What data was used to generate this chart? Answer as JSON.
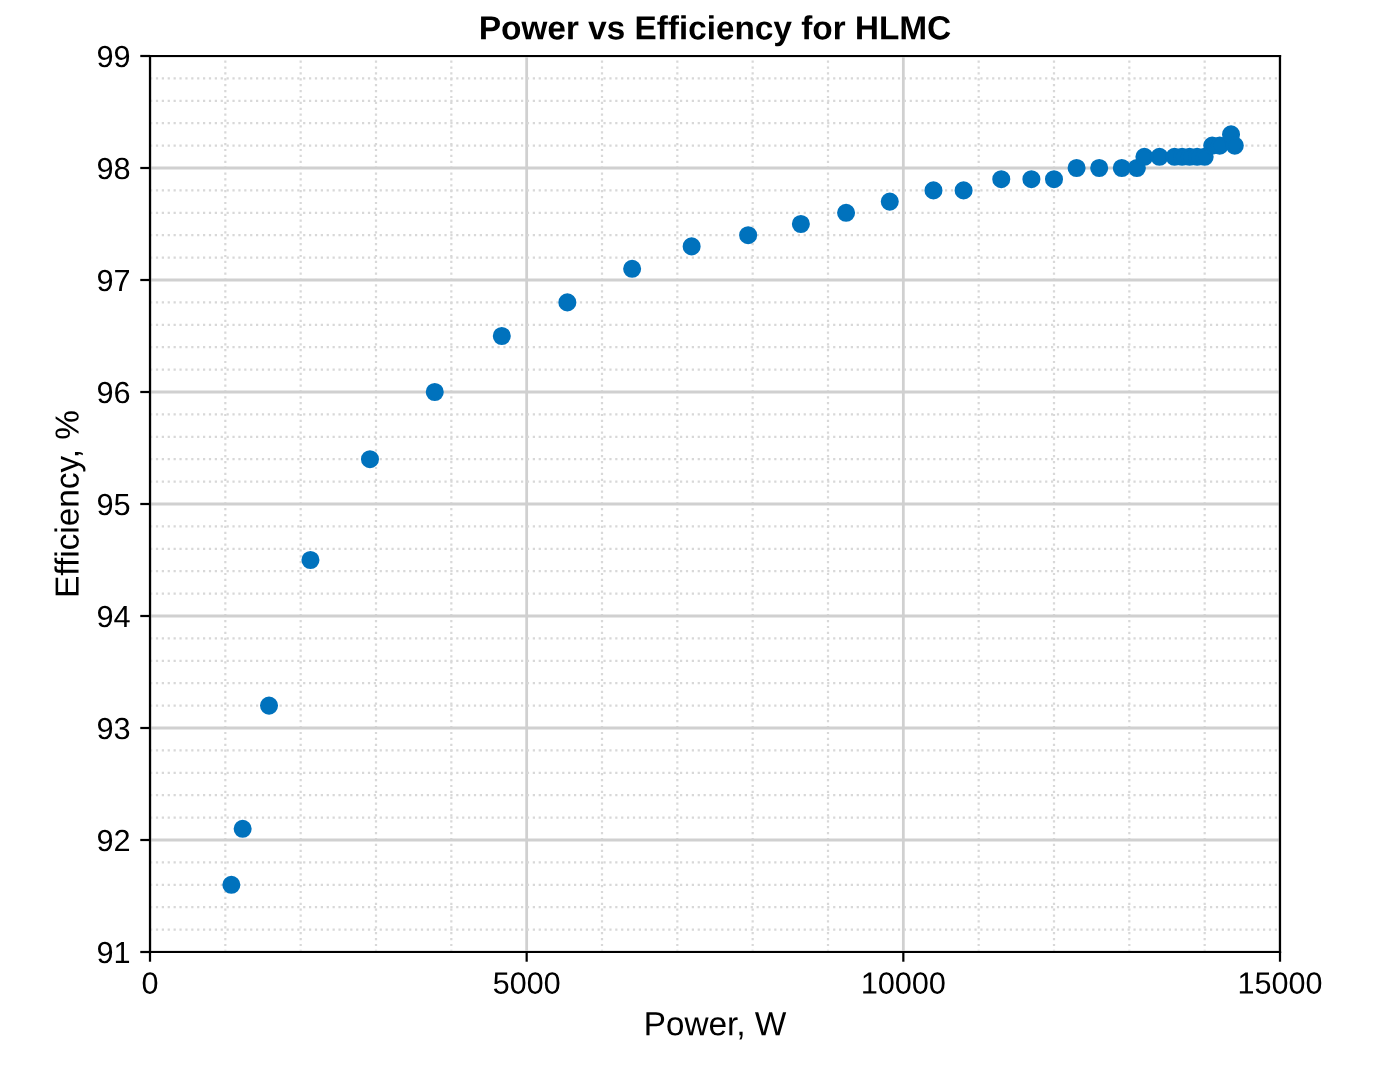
{
  "chart_data": {
    "type": "scatter",
    "title": "Power vs Efficiency for HLMC",
    "xlabel": "Power, W",
    "ylabel": "Efficiency, %",
    "x": [
      1080,
      1230,
      1580,
      2130,
      2920,
      3780,
      4670,
      5540,
      6400,
      7190,
      7940,
      8640,
      9240,
      9820,
      10400,
      10800,
      11300,
      11700,
      12000,
      12300,
      12600,
      12900,
      13100,
      13200,
      13400,
      13600,
      13700,
      13800,
      13900,
      14000,
      14100,
      14200,
      14350,
      14400
    ],
    "series": [
      {
        "color": "#0072bd",
        "values": [
          91.6,
          92.1,
          93.2,
          94.5,
          95.4,
          96.0,
          96.5,
          96.8,
          97.1,
          97.3,
          97.4,
          97.5,
          97.6,
          97.7,
          97.8,
          97.8,
          97.9,
          97.9,
          97.9,
          98.0,
          98.0,
          98.0,
          98.0,
          98.1,
          98.1,
          98.1,
          98.1,
          98.1,
          98.1,
          98.1,
          98.2,
          98.2,
          98.3,
          98.2
        ]
      }
    ],
    "xlim": [
      0,
      15000
    ],
    "xticks": [
      0,
      5000,
      10000,
      15000
    ],
    "ylim": [
      91,
      99
    ],
    "yticks": [
      91,
      92,
      93,
      94,
      95,
      96,
      97,
      98,
      99
    ],
    "grid": true,
    "marker": "circle"
  }
}
